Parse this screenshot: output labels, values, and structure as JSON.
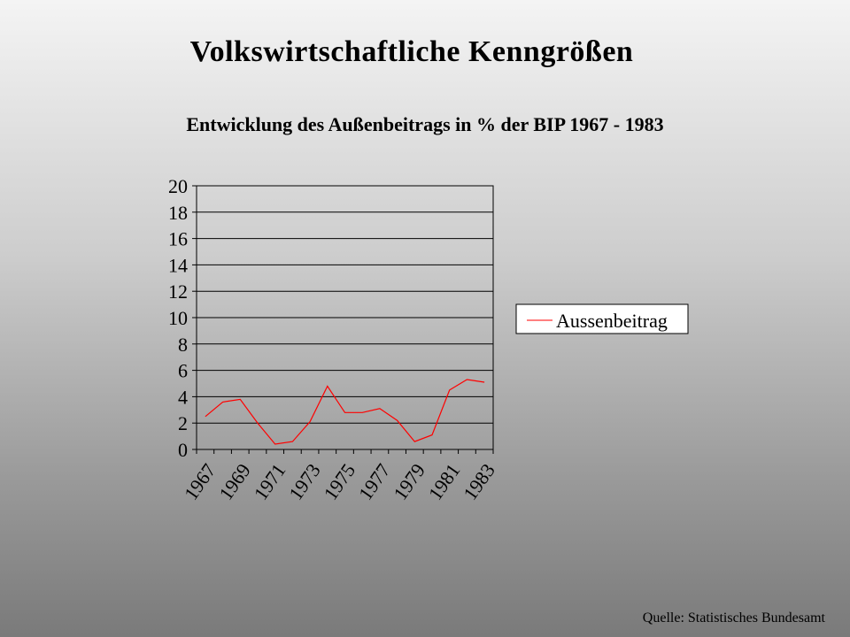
{
  "slide": {
    "title": "Volkswirtschaftliche Kenngrößen",
    "subtitle": "Entwicklung des Außenbeitrags in % der BIP 1967 - 1983",
    "source": "Quelle: Statistisches Bundesamt"
  },
  "chart_data": {
    "type": "line",
    "title": "",
    "xlabel": "",
    "ylabel": "",
    "ylim": [
      0,
      20
    ],
    "yticks": [
      0,
      2,
      4,
      6,
      8,
      10,
      12,
      14,
      16,
      18,
      20
    ],
    "x": [
      "1967",
      "1968",
      "1969",
      "1970",
      "1971",
      "1972",
      "1973",
      "1974",
      "1975",
      "1976",
      "1977",
      "1978",
      "1979",
      "1980",
      "1981",
      "1982",
      "1983"
    ],
    "xtick_labels": [
      "1967",
      "1969",
      "1971",
      "1973",
      "1975",
      "1977",
      "1979",
      "1981",
      "1983"
    ],
    "series": [
      {
        "name": "Aussenbeitrag",
        "color": "#ff0000",
        "values": [
          2.5,
          3.6,
          3.8,
          2.0,
          0.4,
          0.6,
          2.1,
          4.8,
          2.8,
          2.8,
          3.1,
          2.2,
          0.6,
          1.1,
          4.5,
          5.3,
          5.1
        ]
      }
    ],
    "grid": "horizontal",
    "legend": "right"
  }
}
